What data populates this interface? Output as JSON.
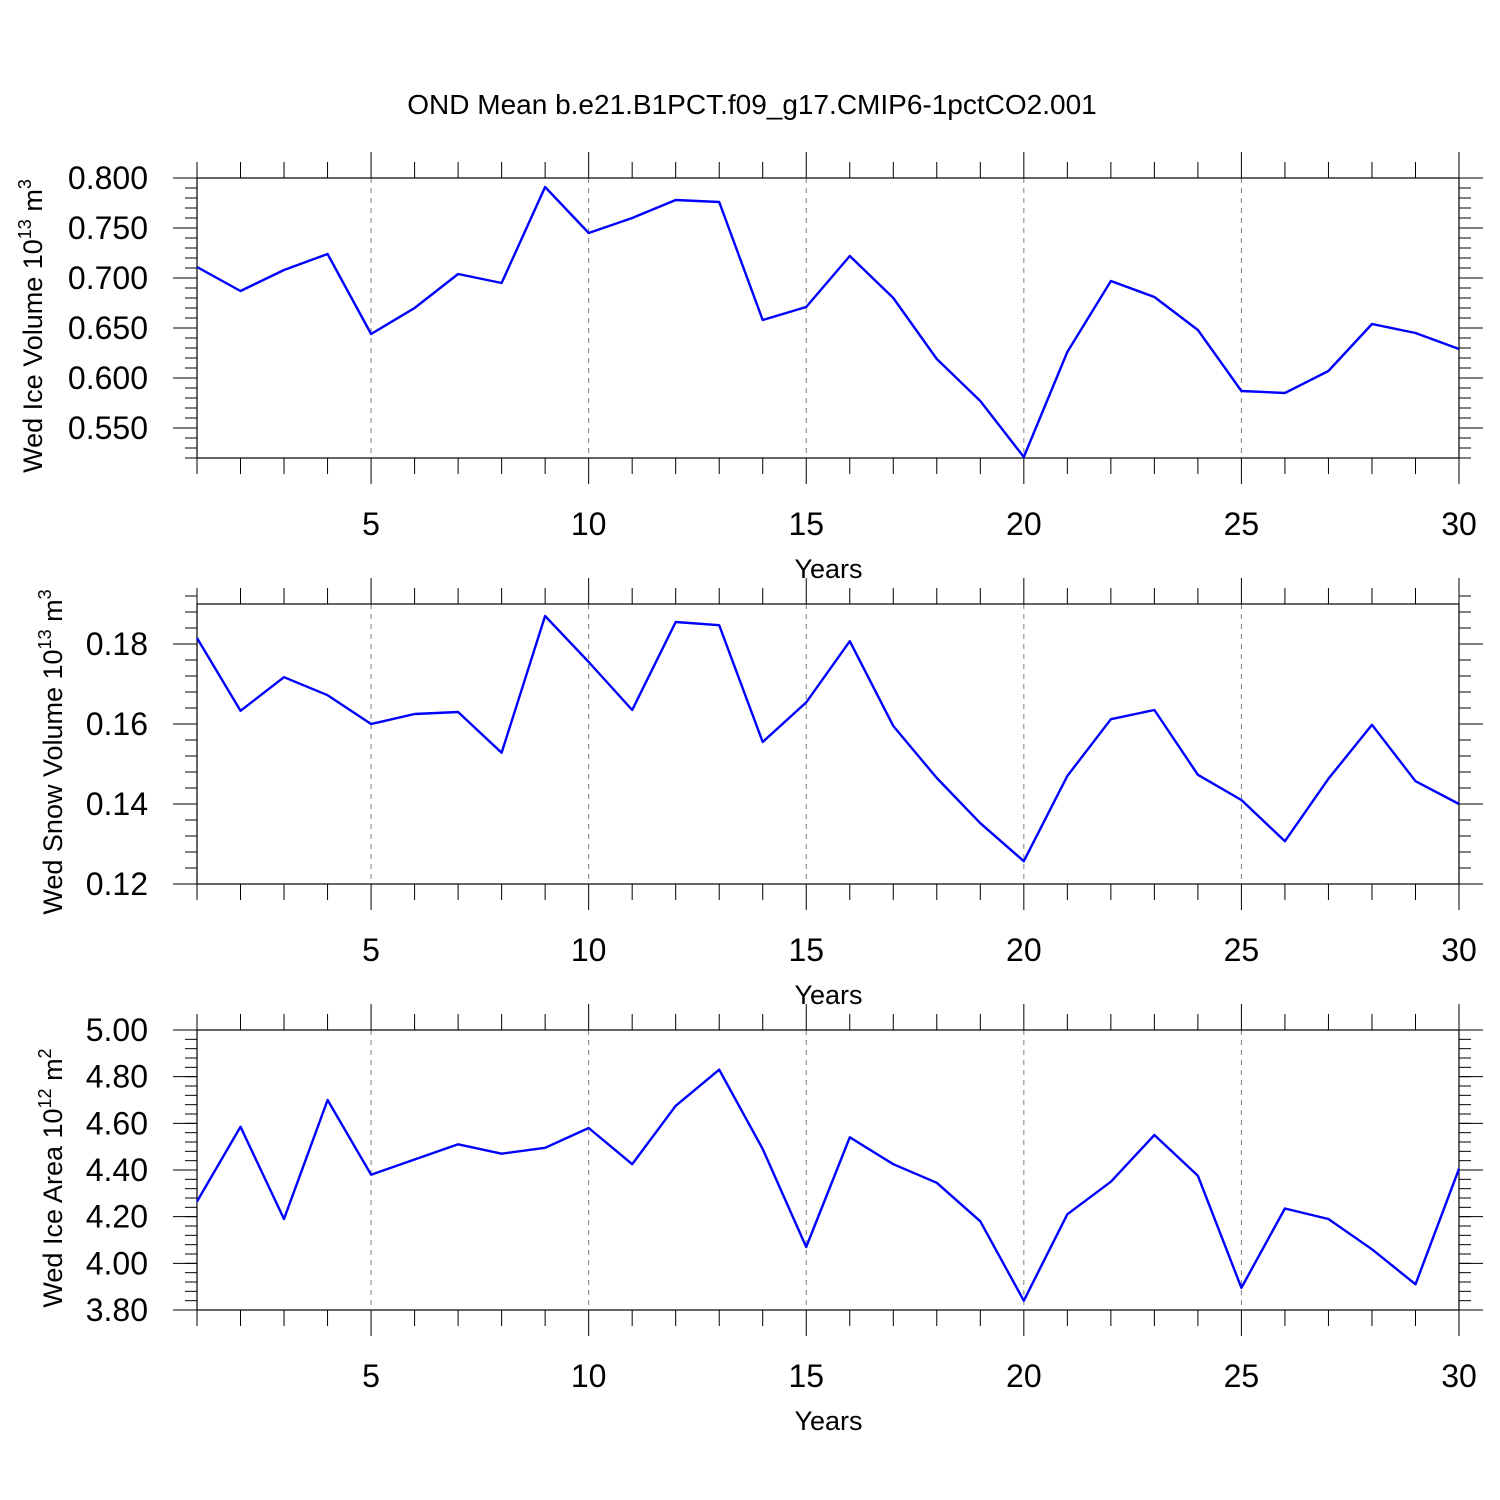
{
  "title": "OND Mean b.e21.B1PCT.f09_g17.CMIP6-1pctCO2.001",
  "line_color": "#0000ff",
  "chart_data": [
    {
      "type": "line",
      "ylabel_main": "Wed Ice Volume 10",
      "ylabel_exp": "13",
      "ylabel_unit": " m",
      "ylabel_unit_exp": "3",
      "xlabel": "Years",
      "xlim": [
        1,
        30
      ],
      "ylim": [
        0.52,
        0.8
      ],
      "y_major_ticks": [
        0.55,
        0.6,
        0.65,
        0.7,
        0.75,
        0.8
      ],
      "y_tick_labels": [
        "0.550",
        "0.600",
        "0.650",
        "0.700",
        "0.750",
        "0.800"
      ],
      "y_minor_step": 0.01,
      "x_major_ticks": [
        5,
        10,
        15,
        20,
        25,
        30
      ],
      "x_tick_labels": [
        "5",
        "10",
        "15",
        "20",
        "25",
        "30"
      ],
      "x": [
        1,
        2,
        3,
        4,
        5,
        6,
        7,
        8,
        9,
        10,
        11,
        12,
        13,
        14,
        15,
        16,
        17,
        18,
        19,
        20,
        21,
        22,
        23,
        24,
        25,
        26,
        27,
        28,
        29,
        30
      ],
      "values": [
        0.711,
        0.687,
        0.708,
        0.724,
        0.644,
        0.67,
        0.704,
        0.695,
        0.791,
        0.745,
        0.76,
        0.778,
        0.776,
        0.658,
        0.671,
        0.722,
        0.68,
        0.619,
        0.577,
        0.521,
        0.626,
        0.697,
        0.681,
        0.648,
        0.587,
        0.585,
        0.607,
        0.654,
        0.645,
        0.629
      ]
    },
    {
      "type": "line",
      "ylabel_main": "Wed Snow Volume 10",
      "ylabel_exp": "13",
      "ylabel_unit": " m",
      "ylabel_unit_exp": "3",
      "xlabel": "Years",
      "xlim": [
        1,
        30
      ],
      "ylim": [
        0.12,
        0.19
      ],
      "y_major_ticks": [
        0.12,
        0.14,
        0.16,
        0.18
      ],
      "y_tick_labels": [
        "0.12",
        "0.14",
        "0.16",
        "0.18"
      ],
      "y_minor_step": 0.004,
      "x_major_ticks": [
        5,
        10,
        15,
        20,
        25,
        30
      ],
      "x_tick_labels": [
        "5",
        "10",
        "15",
        "20",
        "25",
        "30"
      ],
      "x": [
        1,
        2,
        3,
        4,
        5,
        6,
        7,
        8,
        9,
        10,
        11,
        12,
        13,
        14,
        15,
        16,
        17,
        18,
        19,
        20,
        21,
        22,
        23,
        24,
        25,
        26,
        27,
        28,
        29,
        30
      ],
      "values": [
        0.1815,
        0.1633,
        0.1717,
        0.1672,
        0.16,
        0.1625,
        0.163,
        0.1528,
        0.187,
        0.1755,
        0.1635,
        0.1855,
        0.1847,
        0.1555,
        0.1654,
        0.1807,
        0.1595,
        0.1465,
        0.1352,
        0.1257,
        0.147,
        0.1612,
        0.1635,
        0.1473,
        0.141,
        0.1307,
        0.1463,
        0.1598,
        0.1457,
        0.14
      ]
    },
    {
      "type": "line",
      "ylabel_main": "Wed Ice Area 10",
      "ylabel_exp": "12",
      "ylabel_unit": " m",
      "ylabel_unit_exp": "2",
      "xlabel": "Years",
      "xlim": [
        1,
        30
      ],
      "ylim": [
        3.8,
        5.0
      ],
      "y_major_ticks": [
        3.8,
        4.0,
        4.2,
        4.4,
        4.6,
        4.8,
        5.0
      ],
      "y_tick_labels": [
        "3.80",
        "4.00",
        "4.20",
        "4.40",
        "4.60",
        "4.80",
        "5.00"
      ],
      "y_minor_step": 0.04,
      "x_major_ticks": [
        5,
        10,
        15,
        20,
        25,
        30
      ],
      "x_tick_labels": [
        "5",
        "10",
        "15",
        "20",
        "25",
        "30"
      ],
      "x": [
        1,
        2,
        3,
        4,
        5,
        6,
        7,
        8,
        9,
        10,
        11,
        12,
        13,
        14,
        15,
        16,
        17,
        18,
        19,
        20,
        21,
        22,
        23,
        24,
        25,
        26,
        27,
        28,
        29,
        30
      ],
      "values": [
        4.265,
        4.585,
        4.19,
        4.7,
        4.38,
        4.445,
        4.51,
        4.47,
        4.495,
        4.58,
        4.425,
        4.675,
        4.83,
        4.49,
        4.07,
        4.54,
        4.425,
        4.345,
        4.18,
        3.84,
        4.21,
        4.35,
        4.55,
        4.375,
        3.895,
        4.235,
        4.19,
        4.06,
        3.91,
        4.405
      ]
    }
  ]
}
